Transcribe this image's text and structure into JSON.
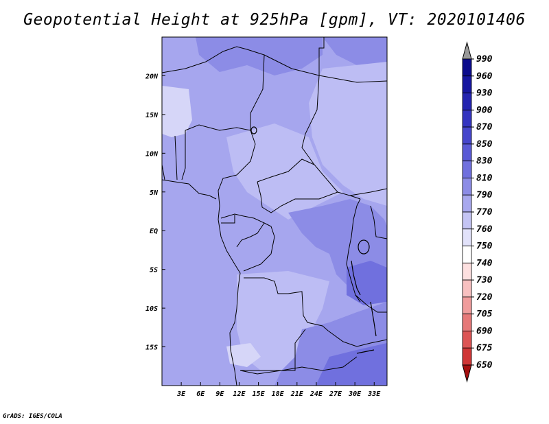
{
  "title": "Geopotential Height at 925hPa [gpm], VT: 2020101406",
  "footer": "GrADS: IGES/COLA",
  "map": {
    "lon_range": [
      0,
      35
    ],
    "lat_range": [
      -20,
      25
    ],
    "x_ticks": [
      "3E",
      "6E",
      "9E",
      "12E",
      "15E",
      "18E",
      "21E",
      "24E",
      "27E",
      "30E",
      "33E"
    ],
    "y_ticks": [
      "20N",
      "15N",
      "10N",
      "5N",
      "EQ",
      "5S",
      "10S",
      "15S"
    ],
    "x_tick_values": [
      3,
      6,
      9,
      12,
      15,
      18,
      21,
      24,
      27,
      30,
      33
    ],
    "y_tick_values": [
      20,
      15,
      10,
      5,
      0,
      -5,
      -10,
      -15
    ]
  },
  "colorbar": {
    "labels": [
      "990",
      "960",
      "930",
      "900",
      "870",
      "850",
      "830",
      "810",
      "790",
      "770",
      "760",
      "750",
      "740",
      "730",
      "720",
      "705",
      "690",
      "675",
      "650"
    ],
    "colors": [
      "#0b0b8c",
      "#1616a0",
      "#2424b0",
      "#3434c0",
      "#4646cc",
      "#5a5ad6",
      "#7070de",
      "#8c8ce6",
      "#a8a8ee",
      "#c4c4f4",
      "#e2e2fa",
      "#ffffff",
      "#fde0e0",
      "#f8c0c0",
      "#f09c9c",
      "#e67878",
      "#dc5454",
      "#d03636",
      "#bb1c1c",
      "#a50f0f"
    ]
  },
  "fill_colors": {
    "base": "#a6a6ee",
    "dark": "#8c8ce6",
    "darker": "#7070de",
    "light": "#bdbdf4",
    "lighter": "#d6d6f8"
  }
}
